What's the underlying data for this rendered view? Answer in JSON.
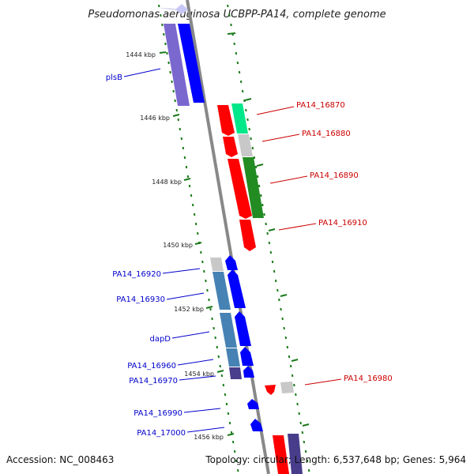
{
  "map": {
    "title": "Pseudomonas aeruginosa UCBPP-PA14, complete genome",
    "accession": "Accession: NC_008463",
    "summary": "Topology: circular; Length: 6,537,648 bp; Genes: 5,964"
  },
  "scale_labels": [
    "1444 kbp",
    "1446 kbp",
    "1448 kbp",
    "1450 kbp",
    "1452 kbp",
    "1454 kbp",
    "1456 kbp"
  ],
  "forward_genes": [
    "PA14_16870",
    "PA14_16880",
    "PA14_16890",
    "PA14_16910",
    "PA14_16980"
  ],
  "reverse_genes": [
    "plsB",
    "PA14_16920",
    "PA14_16930",
    "dapD",
    "PA14_16960",
    "PA14_16970",
    "PA14_16990",
    "PA14_17000"
  ],
  "colors": {
    "forward_gene": "#ff0000",
    "reverse_gene": "#0000ff",
    "forward_label": "#cc0000",
    "reverse_label": "#0000cc",
    "backbone": "#888888",
    "scale_ticks": "#1a7a1a",
    "cog_slate": "#7b68cf",
    "cog_steel": "#4682b4",
    "cog_green": "#228b22",
    "cog_spring": "#00e88a",
    "cog_none": "#c8c8c8"
  }
}
